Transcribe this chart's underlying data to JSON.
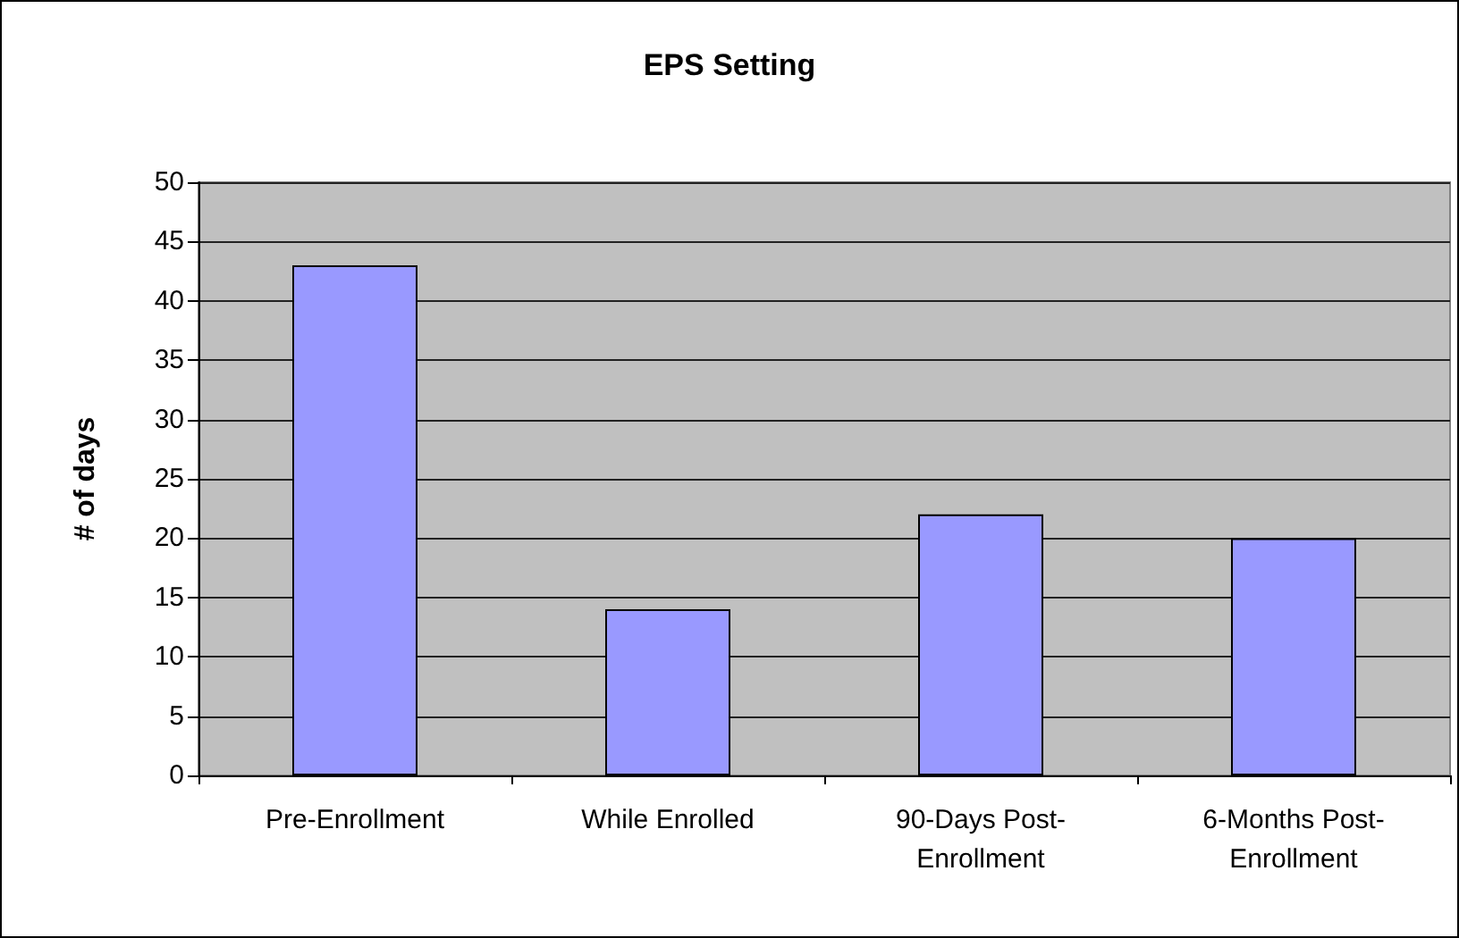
{
  "chart_data": {
    "type": "bar",
    "title": "EPS Setting",
    "ylabel": "# of days",
    "categories": [
      "Pre-Enrollment",
      "While Enrolled",
      "90-Days Post-Enrollment",
      "6-Months Post-Enrollment"
    ],
    "values": [
      43,
      14,
      22,
      20
    ],
    "color": "#9999ff",
    "ylim": [
      0,
      50
    ],
    "yticks": [
      0,
      5,
      10,
      15,
      20,
      25,
      30,
      35,
      40,
      45,
      50
    ],
    "grid": "y"
  }
}
